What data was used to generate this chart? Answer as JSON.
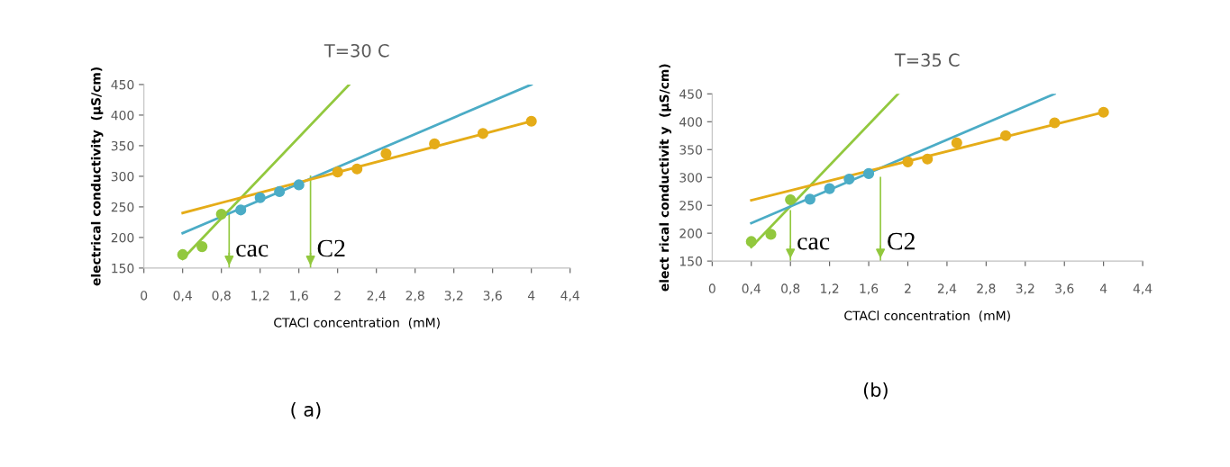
{
  "chart_data": [
    {
      "type": "scatter",
      "title": "T=30 C",
      "xlabel": "CTACl concentration  (mM)",
      "ylabel": "electrical conductivity  (µS/cm)",
      "xlim": [
        0,
        4.4
      ],
      "ylim": [
        150,
        450
      ],
      "xticks": [
        0,
        {
          "value": 0.4,
          "label": "0,4"
        },
        {
          "value": 0.8,
          "label": "0,8"
        },
        {
          "value": 1.2,
          "label": "1,2"
        },
        {
          "value": 1.6,
          "label": "1,6"
        },
        2,
        {
          "value": 2.4,
          "label": "2,4"
        },
        {
          "value": 2.8,
          "label": "2,8"
        },
        {
          "value": 3.2,
          "label": "3,2"
        },
        {
          "value": 3.6,
          "label": "3,6"
        },
        4,
        {
          "value": 4.4,
          "label": "4,4"
        }
      ],
      "yticks": [
        150,
        200,
        250,
        300,
        350,
        400,
        450
      ],
      "grid": false,
      "legend": false,
      "series": [
        {
          "marker": "circle",
          "color": "#92c83e",
          "x": [
            0.4,
            0.6,
            0.8
          ],
          "values": [
            172,
            185,
            238
          ]
        },
        {
          "marker": "circle",
          "color": "#4bacc6",
          "x": [
            1.0,
            1.2,
            1.4,
            1.6
          ],
          "values": [
            245,
            265,
            275,
            286
          ]
        },
        {
          "marker": "circle",
          "color": "#e5ac18",
          "x": [
            2.0,
            2.2,
            2.5,
            3.0,
            3.5,
            4.0
          ],
          "values": [
            307,
            312,
            337,
            353,
            370,
            390
          ]
        },
        {
          "type": "line",
          "color": "#92c83e",
          "x": [
            0.4,
            2.12
          ],
          "values": [
            165,
            450
          ]
        },
        {
          "type": "line",
          "color": "#4bacc6",
          "x": [
            0.4,
            4.0
          ],
          "values": [
            207,
            450
          ]
        },
        {
          "type": "line",
          "color": "#e5ac18",
          "x": [
            0.4,
            4.0
          ],
          "values": [
            240,
            390
          ]
        }
      ],
      "ref_lines": [
        {
          "axis": "x",
          "value": 0.88,
          "label": "cac",
          "color": "#92c83e"
        },
        {
          "axis": "x",
          "value": 1.72,
          "label": "C2",
          "color": "#92c83e"
        }
      ],
      "annotations": [
        "( a)"
      ]
    },
    {
      "type": "scatter",
      "title": "T=35 C",
      "xlabel": "CTACl concentration  (mM)",
      "ylabel": "elect rical conductivit y  (µS/cm)",
      "xlim": [
        0,
        4.4
      ],
      "ylim": [
        150,
        450
      ],
      "xticks": [
        0,
        {
          "value": 0.4,
          "label": "0,4"
        },
        {
          "value": 0.8,
          "label": "0,8"
        },
        {
          "value": 1.2,
          "label": "1,2"
        },
        {
          "value": 1.6,
          "label": "1,6"
        },
        2,
        {
          "value": 2.4,
          "label": "2,4"
        },
        {
          "value": 2.8,
          "label": "2,8"
        },
        {
          "value": 3.2,
          "label": "3,2"
        },
        {
          "value": 3.6,
          "label": "3,6"
        },
        4,
        {
          "value": 4.4,
          "label": "4,4"
        }
      ],
      "yticks": [
        150,
        200,
        250,
        300,
        350,
        400,
        450
      ],
      "grid": false,
      "legend": false,
      "series": [
        {
          "marker": "circle",
          "color": "#92c83e",
          "x": [
            0.4,
            0.6,
            0.8
          ],
          "values": [
            185,
            198,
            260
          ]
        },
        {
          "marker": "circle",
          "color": "#4bacc6",
          "x": [
            1.0,
            1.2,
            1.4,
            1.6
          ],
          "values": [
            261,
            280,
            297,
            307
          ]
        },
        {
          "marker": "circle",
          "color": "#e5ac18",
          "x": [
            2.0,
            2.2,
            2.5,
            3.0,
            3.5,
            4.0
          ],
          "values": [
            328,
            333,
            362,
            375,
            398,
            417
          ]
        },
        {
          "type": "line",
          "color": "#92c83e",
          "x": [
            0.4,
            1.9
          ],
          "values": [
            175,
            450
          ]
        },
        {
          "type": "line",
          "color": "#4bacc6",
          "x": [
            0.4,
            3.5
          ],
          "values": [
            218,
            450
          ]
        },
        {
          "type": "line",
          "color": "#e5ac18",
          "x": [
            0.4,
            4.0
          ],
          "values": [
            259,
            417
          ]
        }
      ],
      "ref_lines": [
        {
          "axis": "x",
          "value": 0.8,
          "label": "cac",
          "color": "#92c83e"
        },
        {
          "axis": "x",
          "value": 1.72,
          "label": "C2",
          "color": "#92c83e"
        }
      ],
      "annotations": [
        "(b)"
      ]
    }
  ]
}
